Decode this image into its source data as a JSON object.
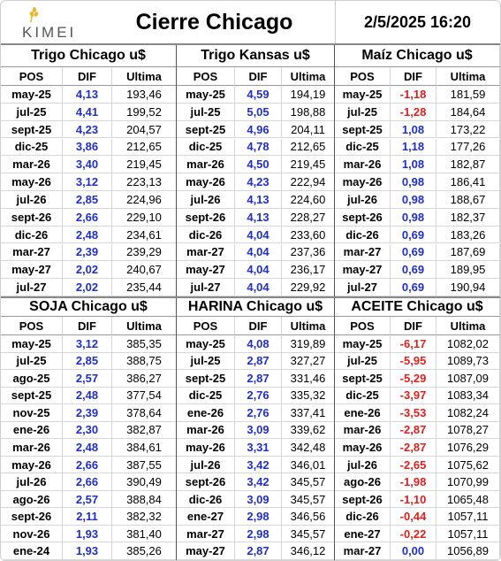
{
  "header": {
    "logo": "KIMEI",
    "title": "Cierre Chicago",
    "date": "2/5/2025 16:20"
  },
  "panels": [
    {
      "title": "Trigo Chicago u$",
      "columns": [
        "POS",
        "DIF",
        "Ultima"
      ],
      "rows": [
        [
          "may-25",
          "4,13",
          "193,46"
        ],
        [
          "jul-25",
          "4,41",
          "199,52"
        ],
        [
          "sept-25",
          "4,23",
          "204,57"
        ],
        [
          "dic-25",
          "3,86",
          "212,65"
        ],
        [
          "mar-26",
          "3,40",
          "219,45"
        ],
        [
          "may-26",
          "3,12",
          "223,13"
        ],
        [
          "jul-26",
          "2,85",
          "224,96"
        ],
        [
          "sept-26",
          "2,66",
          "229,10"
        ],
        [
          "dic-26",
          "2,48",
          "234,61"
        ],
        [
          "mar-27",
          "2,39",
          "239,29"
        ],
        [
          "may-27",
          "2,02",
          "240,67"
        ],
        [
          "jul-27",
          "2,02",
          "235,44"
        ]
      ]
    },
    {
      "title": "Trigo Kansas u$",
      "columns": [
        "POS",
        "DIF",
        "Ultima"
      ],
      "rows": [
        [
          "may-25",
          "4,59",
          "194,19"
        ],
        [
          "jul-25",
          "5,05",
          "198,88"
        ],
        [
          "sept-25",
          "4,96",
          "204,11"
        ],
        [
          "dic-25",
          "4,78",
          "212,65"
        ],
        [
          "mar-26",
          "4,50",
          "219,45"
        ],
        [
          "may-26",
          "4,23",
          "222,94"
        ],
        [
          "jul-26",
          "4,13",
          "224,60"
        ],
        [
          "sept-26",
          "4,13",
          "228,27"
        ],
        [
          "dic-26",
          "4,04",
          "233,60"
        ],
        [
          "mar-27",
          "4,04",
          "237,36"
        ],
        [
          "may-27",
          "4,04",
          "236,17"
        ],
        [
          "jul-27",
          "4,04",
          "229,92"
        ]
      ]
    },
    {
      "title": "Maíz Chicago u$",
      "columns": [
        "POS",
        "DIF",
        "Ultima"
      ],
      "rows": [
        [
          "may-25",
          "-1,18",
          "181,59"
        ],
        [
          "jul-25",
          "-1,28",
          "184,64"
        ],
        [
          "sept-25",
          "1,08",
          "173,22"
        ],
        [
          "dic-25",
          "1,18",
          "177,26"
        ],
        [
          "mar-26",
          "1,08",
          "182,87"
        ],
        [
          "may-26",
          "0,98",
          "186,41"
        ],
        [
          "jul-26",
          "0,98",
          "188,67"
        ],
        [
          "sept-26",
          "0,98",
          "182,37"
        ],
        [
          "dic-26",
          "0,69",
          "183,26"
        ],
        [
          "mar-27",
          "0,69",
          "187,69"
        ],
        [
          "may-27",
          "0,69",
          "189,95"
        ],
        [
          "jul-27",
          "0,69",
          "190,94"
        ]
      ]
    },
    {
      "title": "SOJA Chicago u$",
      "columns": [
        "POS",
        "DIF",
        "Ultima"
      ],
      "rows": [
        [
          "may-25",
          "3,12",
          "385,35"
        ],
        [
          "jul-25",
          "2,85",
          "388,75"
        ],
        [
          "ago-25",
          "2,57",
          "386,27"
        ],
        [
          "sept-25",
          "2,48",
          "377,54"
        ],
        [
          "nov-25",
          "2,39",
          "378,64"
        ],
        [
          "ene-26",
          "2,30",
          "382,87"
        ],
        [
          "mar-26",
          "2,48",
          "384,61"
        ],
        [
          "may-26",
          "2,66",
          "387,55"
        ],
        [
          "jul-26",
          "2,66",
          "390,49"
        ],
        [
          "ago-26",
          "2,57",
          "388,84"
        ],
        [
          "sept-26",
          "2,11",
          "382,32"
        ],
        [
          "nov-26",
          "1,93",
          "381,40"
        ],
        [
          "ene-24",
          "1,93",
          "385,26"
        ]
      ]
    },
    {
      "title": "HARINA Chicago u$",
      "columns": [
        "POS",
        "DIF",
        "Ultima"
      ],
      "rows": [
        [
          "may-25",
          "4,08",
          "319,89"
        ],
        [
          "jul-25",
          "2,87",
          "327,27"
        ],
        [
          "sept-25",
          "2,87",
          "331,46"
        ],
        [
          "dic-25",
          "2,76",
          "335,32"
        ],
        [
          "ene-26",
          "2,76",
          "337,41"
        ],
        [
          "mar-26",
          "3,09",
          "339,62"
        ],
        [
          "may-26",
          "3,31",
          "342,48"
        ],
        [
          "jul-26",
          "3,42",
          "346,01"
        ],
        [
          "sept-26",
          "3,42",
          "345,57"
        ],
        [
          "dic-26",
          "3,09",
          "345,57"
        ],
        [
          "ene-27",
          "2,98",
          "346,56"
        ],
        [
          "mar-27",
          "2,98",
          "345,57"
        ],
        [
          "may-27",
          "2,87",
          "346,12"
        ]
      ]
    },
    {
      "title": "ACEITE Chicago u$",
      "columns": [
        "POS",
        "DIF",
        "Ultima"
      ],
      "rows": [
        [
          "may-25",
          "-6,17",
          "1082,02"
        ],
        [
          "jul-25",
          "-5,95",
          "1089,73"
        ],
        [
          "sept-25",
          "-5,29",
          "1087,09"
        ],
        [
          "dic-25",
          "-3,97",
          "1083,34"
        ],
        [
          "ene-26",
          "-3,53",
          "1082,24"
        ],
        [
          "mar-26",
          "-2,87",
          "1078,27"
        ],
        [
          "may-26",
          "-2,87",
          "1076,29"
        ],
        [
          "jul-26",
          "-2,65",
          "1075,62"
        ],
        [
          "ago-26",
          "-1,98",
          "1070,99"
        ],
        [
          "sept-26",
          "-1,10",
          "1065,48"
        ],
        [
          "dic-26",
          "-0,44",
          "1057,11"
        ],
        [
          "ene-27",
          "-0,22",
          "1057,11"
        ],
        [
          "mar-27",
          "0,00",
          "1056,89"
        ]
      ]
    }
  ]
}
